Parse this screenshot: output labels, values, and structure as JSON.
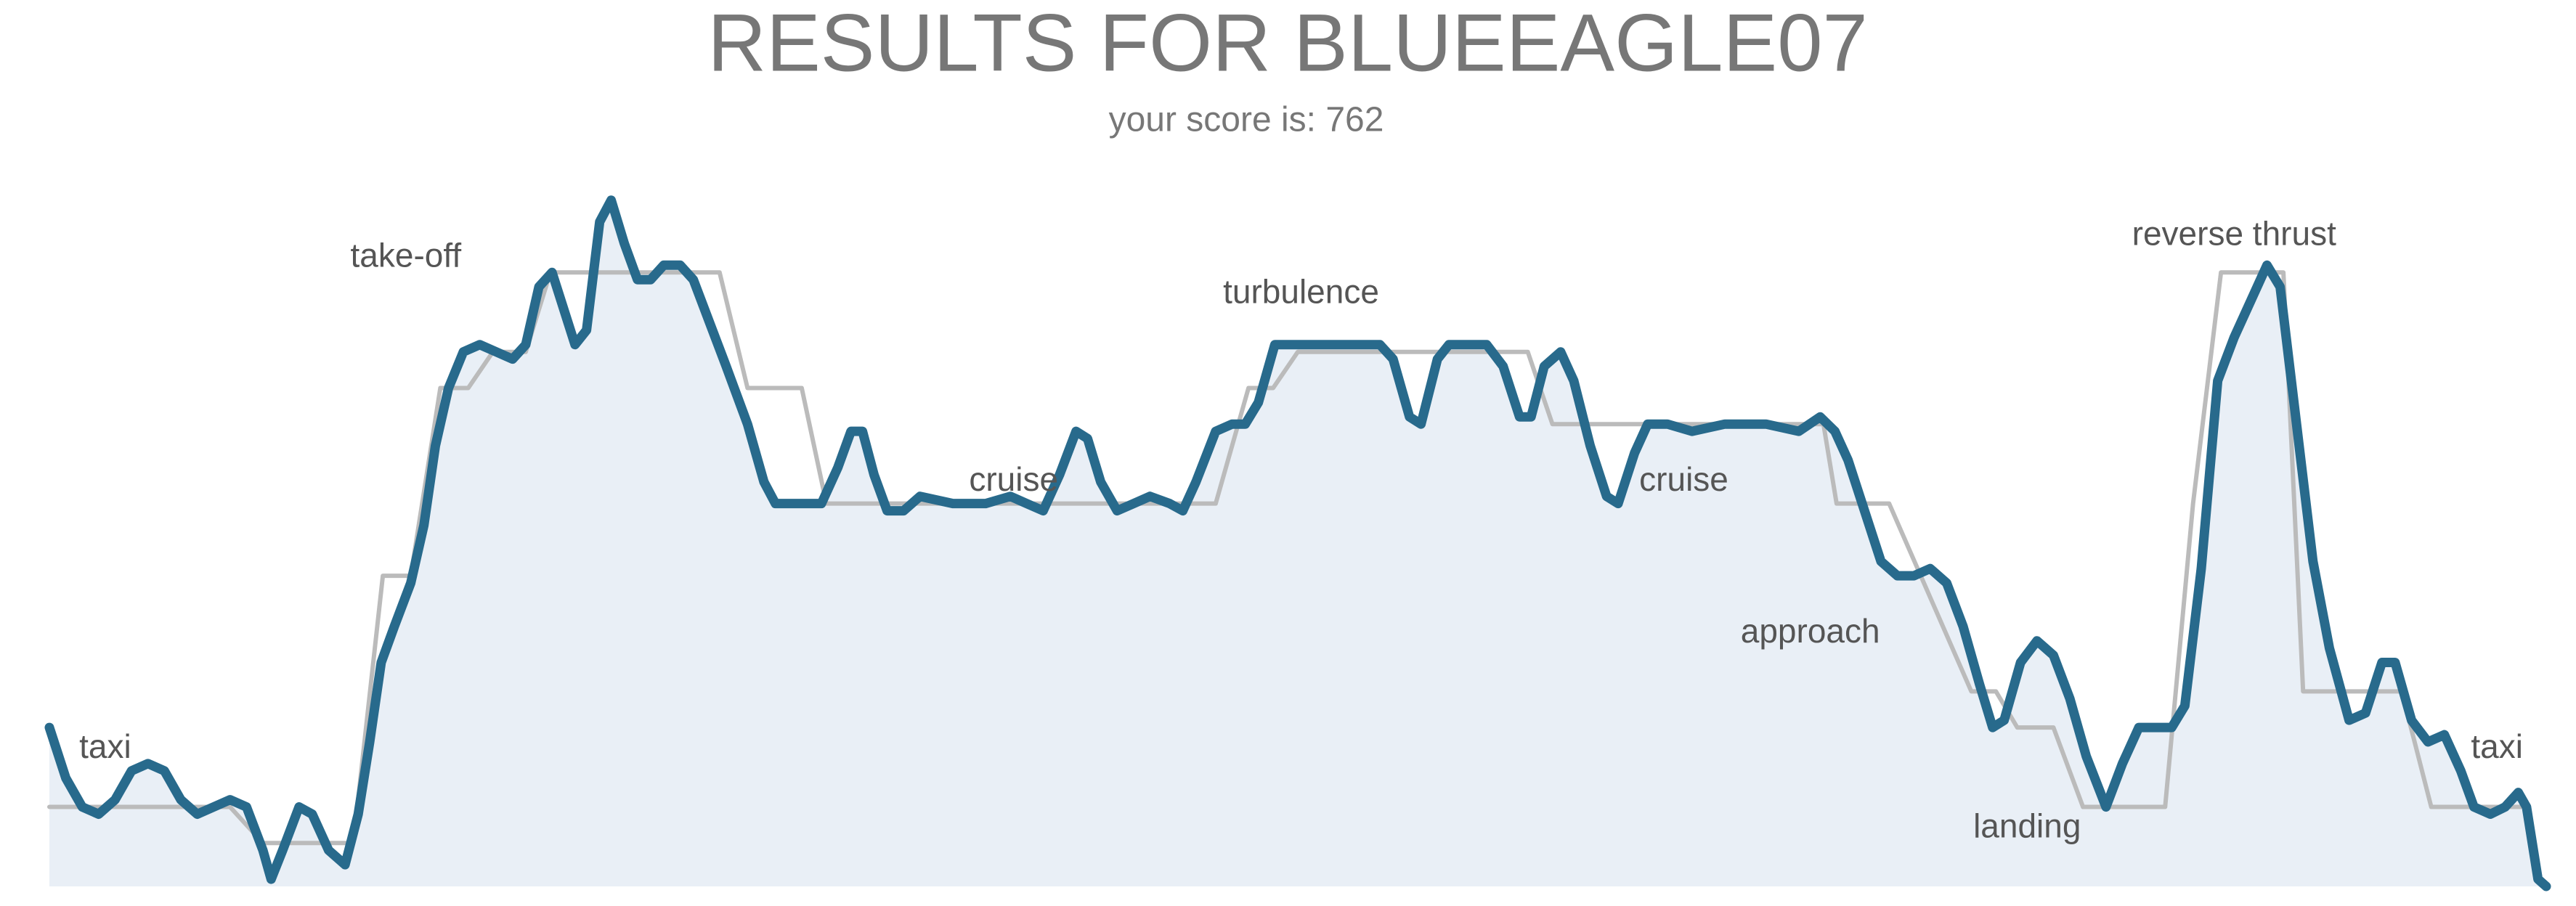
{
  "chart_data": {
    "type": "line",
    "title": "RESULTS FOR BLUEEAGLE07",
    "subtitle": "your score is: 762",
    "xlim": [
      0,
      1520
    ],
    "ylim": [
      0,
      100
    ],
    "series": [
      {
        "color": "#bbbbbb",
        "x": [
          0,
          110,
          130,
          185,
          203,
          220,
          238,
          255,
          270,
          290,
          305,
          408,
          425,
          458,
          473,
          710,
          730,
          745,
          760,
          900,
          915,
          1080,
          1088,
          1120,
          1170,
          1185,
          1198,
          1220,
          1238,
          1288,
          1305,
          1322,
          1360,
          1372,
          1432,
          1450,
          1505
        ],
        "values": [
          11,
          11,
          6,
          6,
          43,
          43,
          69,
          69,
          74,
          74,
          85,
          85,
          69,
          69,
          53,
          53,
          69,
          69,
          74,
          74,
          64,
          64,
          53,
          53,
          27,
          27,
          22,
          22,
          11,
          11,
          53,
          85,
          85,
          27,
          27,
          11,
          11
        ]
      },
      {
        "color": "#286a8c",
        "fill": "#e9eff6",
        "x": [
          0,
          10,
          20,
          30,
          40,
          50,
          60,
          70,
          80,
          90,
          100,
          110,
          120,
          130,
          135,
          142,
          152,
          160,
          170,
          180,
          188,
          195,
          202,
          210,
          220,
          228,
          235,
          243,
          252,
          262,
          272,
          282,
          290,
          298,
          306,
          320,
          327,
          335,
          342,
          350,
          358,
          366,
          374,
          384,
          392,
          402,
          412,
          425,
          435,
          442,
          452,
          462,
          470,
          480,
          488,
          495,
          502,
          510,
          520,
          530,
          550,
          570,
          585,
          595,
          605,
          615,
          625,
          632,
          640,
          650,
          660,
          670,
          682,
          690,
          698,
          710,
          720,
          728,
          736,
          746,
          758,
          770,
          785,
          798,
          810,
          818,
          828,
          835,
          845,
          852,
          865,
          875,
          885,
          895,
          902,
          910,
          920,
          928,
          938,
          948,
          955,
          965,
          973,
          985,
          1000,
          1020,
          1045,
          1065,
          1078,
          1087,
          1095,
          1105,
          1115,
          1125,
          1135,
          1145,
          1155,
          1165,
          1175,
          1183,
          1190,
          1200,
          1210,
          1220,
          1230,
          1240,
          1252,
          1262,
          1272,
          1282,
          1292,
          1300,
          1310,
          1320,
          1330,
          1340,
          1350,
          1358,
          1368,
          1378,
          1388,
          1400,
          1410,
          1420,
          1428,
          1438,
          1448,
          1458,
          1468,
          1476,
          1486,
          1495,
          1503,
          1508,
          1515,
          1520
        ],
        "values": [
          22,
          15,
          11,
          10,
          12,
          16,
          17,
          16,
          12,
          10,
          11,
          12,
          11,
          5,
          1,
          5,
          11,
          10,
          5,
          3,
          10,
          20,
          31,
          36,
          42,
          50,
          61,
          69,
          74,
          75,
          74,
          73,
          75,
          83,
          85,
          75,
          77,
          92,
          95,
          89,
          84,
          84,
          86,
          86,
          84,
          78,
          72,
          64,
          56,
          53,
          53,
          53,
          53,
          58,
          63,
          63,
          57,
          52,
          52,
          54,
          53,
          53,
          54,
          53,
          52,
          57,
          63,
          62,
          56,
          52,
          53,
          54,
          53,
          52,
          56,
          63,
          64,
          64,
          67,
          75,
          75,
          75,
          75,
          75,
          75,
          73,
          65,
          64,
          73,
          75,
          75,
          75,
          72,
          65,
          65,
          72,
          74,
          70,
          61,
          54,
          53,
          60,
          64,
          64,
          63,
          64,
          64,
          63,
          65,
          63,
          59,
          52,
          45,
          43,
          43,
          44,
          42,
          36,
          28,
          22,
          23,
          31,
          34,
          32,
          26,
          18,
          11,
          17,
          22,
          22,
          22,
          25,
          44,
          70,
          76,
          81,
          86,
          83,
          64,
          45,
          33,
          23,
          24,
          31,
          31,
          23,
          20,
          21,
          16,
          11,
          10,
          11,
          13,
          11,
          1,
          0
        ]
      }
    ],
    "annotations": [
      {
        "text": "taxi",
        "x": 34,
        "y": 19
      },
      {
        "text": "take-off",
        "x": 217,
        "y": 87
      },
      {
        "text": "cruise",
        "x": 587,
        "y": 56
      },
      {
        "text": "turbulence",
        "x": 762,
        "y": 82
      },
      {
        "text": "cruise",
        "x": 995,
        "y": 56
      },
      {
        "text": "approach",
        "x": 1072,
        "y": 35
      },
      {
        "text": "landing",
        "x": 1204,
        "y": 8
      },
      {
        "text": "reverse thrust",
        "x": 1330,
        "y": 90
      },
      {
        "text": "taxi",
        "x": 1490,
        "y": 19
      }
    ]
  }
}
